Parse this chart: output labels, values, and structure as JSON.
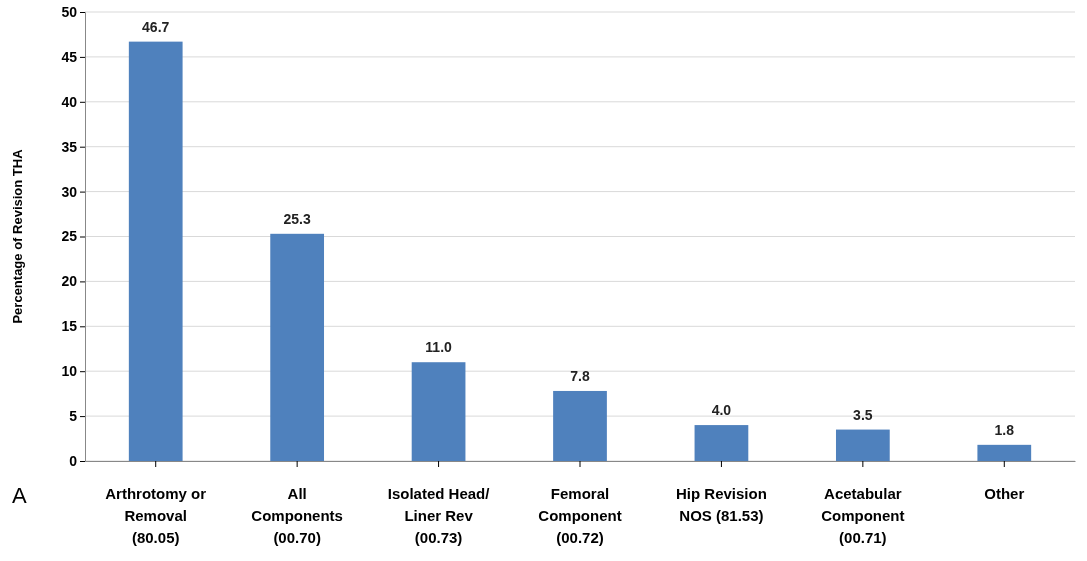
{
  "chart_data": {
    "type": "bar",
    "ylabel": "Percentage of Revision THA",
    "categories": [
      "Arthrotomy or\nRemoval\n(80.05)",
      "All\nComponents\n(00.70)",
      "Isolated Head/\nLiner Rev\n(00.73)",
      "Femoral\nComponent\n(00.72)",
      "Hip Revision\nNOS (81.53)",
      "Acetabular\nComponent\n(00.71)",
      "Other"
    ],
    "values": [
      46.7,
      25.3,
      11.0,
      7.8,
      4.0,
      3.5,
      1.8
    ],
    "value_labels": [
      "46.7",
      "25.3",
      "11.0",
      "7.8",
      "4.0",
      "3.5",
      "1.8"
    ],
    "color": "#4f81bd",
    "ylim": [
      0,
      50
    ],
    "yticks": [
      0,
      5,
      10,
      15,
      20,
      25,
      30,
      35,
      40,
      45,
      50
    ],
    "grid": "y",
    "annotations": [
      "A"
    ]
  }
}
